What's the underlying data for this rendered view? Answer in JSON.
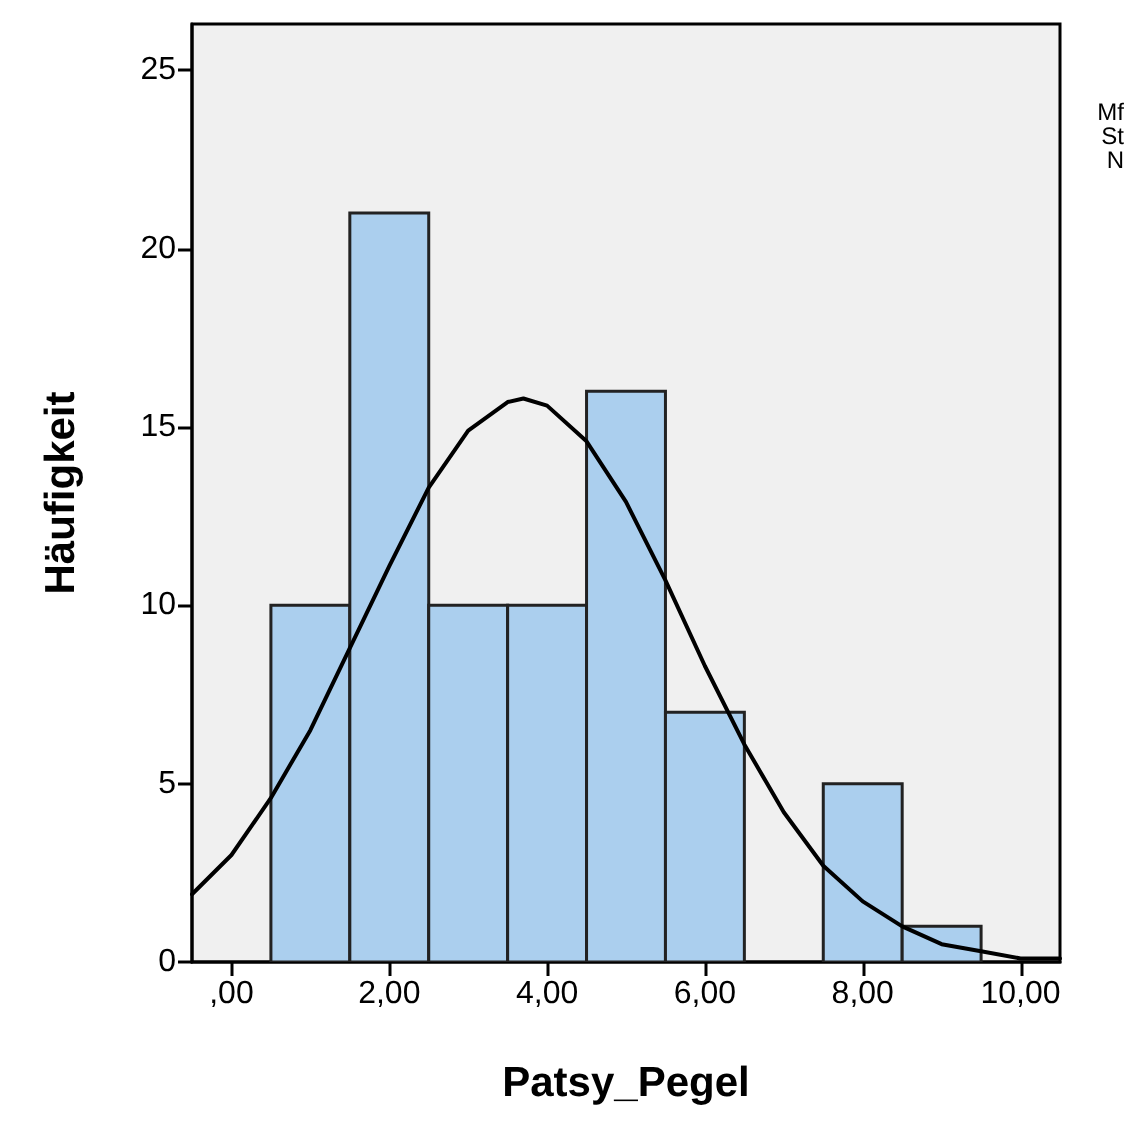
{
  "chart_data": {
    "type": "histogram",
    "xlabel": "Patsy_Pegel",
    "ylabel": "Häufigkeit",
    "series": [
      {
        "color": "#abcfee",
        "bins": [
          0.5,
          1.5,
          2.5,
          3.5,
          4.5,
          5.5,
          6.5,
          7.5,
          8.5,
          9.5
        ],
        "values": [
          10,
          21,
          10,
          10,
          16,
          7,
          0,
          5,
          1
        ]
      },
      {
        "type": "line",
        "color": "#000000",
        "x": [
          -0.5,
          0,
          0.5,
          1,
          1.5,
          2,
          2.5,
          3,
          3.5,
          3.7,
          4,
          4.5,
          5,
          5.5,
          6,
          6.5,
          7,
          7.5,
          8,
          8.5,
          9,
          9.5,
          10,
          10.5
        ],
        "values": [
          1.9,
          3.0,
          4.6,
          6.5,
          8.8,
          11.1,
          13.3,
          14.9,
          15.7,
          15.8,
          15.6,
          14.6,
          12.9,
          10.7,
          8.3,
          6.1,
          4.2,
          2.7,
          1.7,
          1.0,
          0.5,
          0.3,
          0.1,
          0.1
        ]
      }
    ],
    "xlim": [
      -0.5,
      10.5
    ],
    "xticks": [
      {
        "value": 0,
        "label": ",00"
      },
      {
        "value": 2,
        "label": "2,00"
      },
      {
        "value": 4,
        "label": "4,00"
      },
      {
        "value": 6,
        "label": "6,00"
      },
      {
        "value": 8,
        "label": "8,00"
      },
      {
        "value": 10,
        "label": "10,00"
      }
    ],
    "ylim": [
      0,
      26.3
    ],
    "yticks": [
      0,
      5,
      10,
      15,
      20,
      25
    ],
    "grid": false,
    "marker": "none",
    "line_style": "solid",
    "annotations": [
      "Mf",
      "St",
      "N"
    ]
  }
}
